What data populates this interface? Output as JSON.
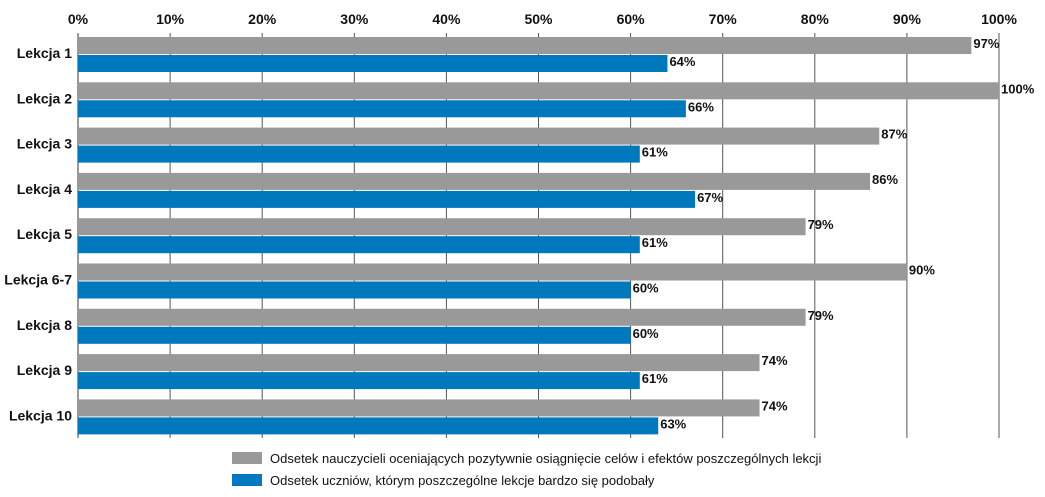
{
  "chart_data": {
    "type": "bar",
    "orientation": "horizontal",
    "categories": [
      "Lekcja 1",
      "Lekcja 2",
      "Lekcja 3",
      "Lekcja 4",
      "Lekcja 5",
      "Lekcja 6-7",
      "Lekcja 8",
      "Lekcja 9",
      "Lekcja 10"
    ],
    "series": [
      {
        "name": "Odsetek nauczycieli oceniających pozytywnie osiągnięcie celów i efektów poszczególnych lekcji",
        "color": "#999999",
        "values": [
          97,
          100,
          87,
          86,
          79,
          90,
          79,
          74,
          74
        ],
        "labels": [
          "97%",
          "100%",
          "87%",
          "86%",
          "79%",
          "90%",
          "79%",
          "74%",
          "74%"
        ]
      },
      {
        "name": "Odsetek uczniów, którym poszczególne lekcje bardzo się podobały",
        "color": "#0078be",
        "values": [
          64,
          66,
          61,
          67,
          61,
          60,
          60,
          61,
          63
        ],
        "labels": [
          "64%",
          "66%",
          "61%",
          "67%",
          "61%",
          "60%",
          "60%",
          "61%",
          "63%"
        ]
      }
    ],
    "xlim": [
      0,
      100
    ],
    "xticks": [
      0,
      10,
      20,
      30,
      40,
      50,
      60,
      70,
      80,
      90,
      100
    ],
    "xtick_labels": [
      "0%",
      "10%",
      "20%",
      "30%",
      "40%",
      "50%",
      "60%",
      "70%",
      "80%",
      "90%",
      "100%"
    ],
    "x_axis_position": "top",
    "grid": true,
    "legend_position": "bottom"
  }
}
